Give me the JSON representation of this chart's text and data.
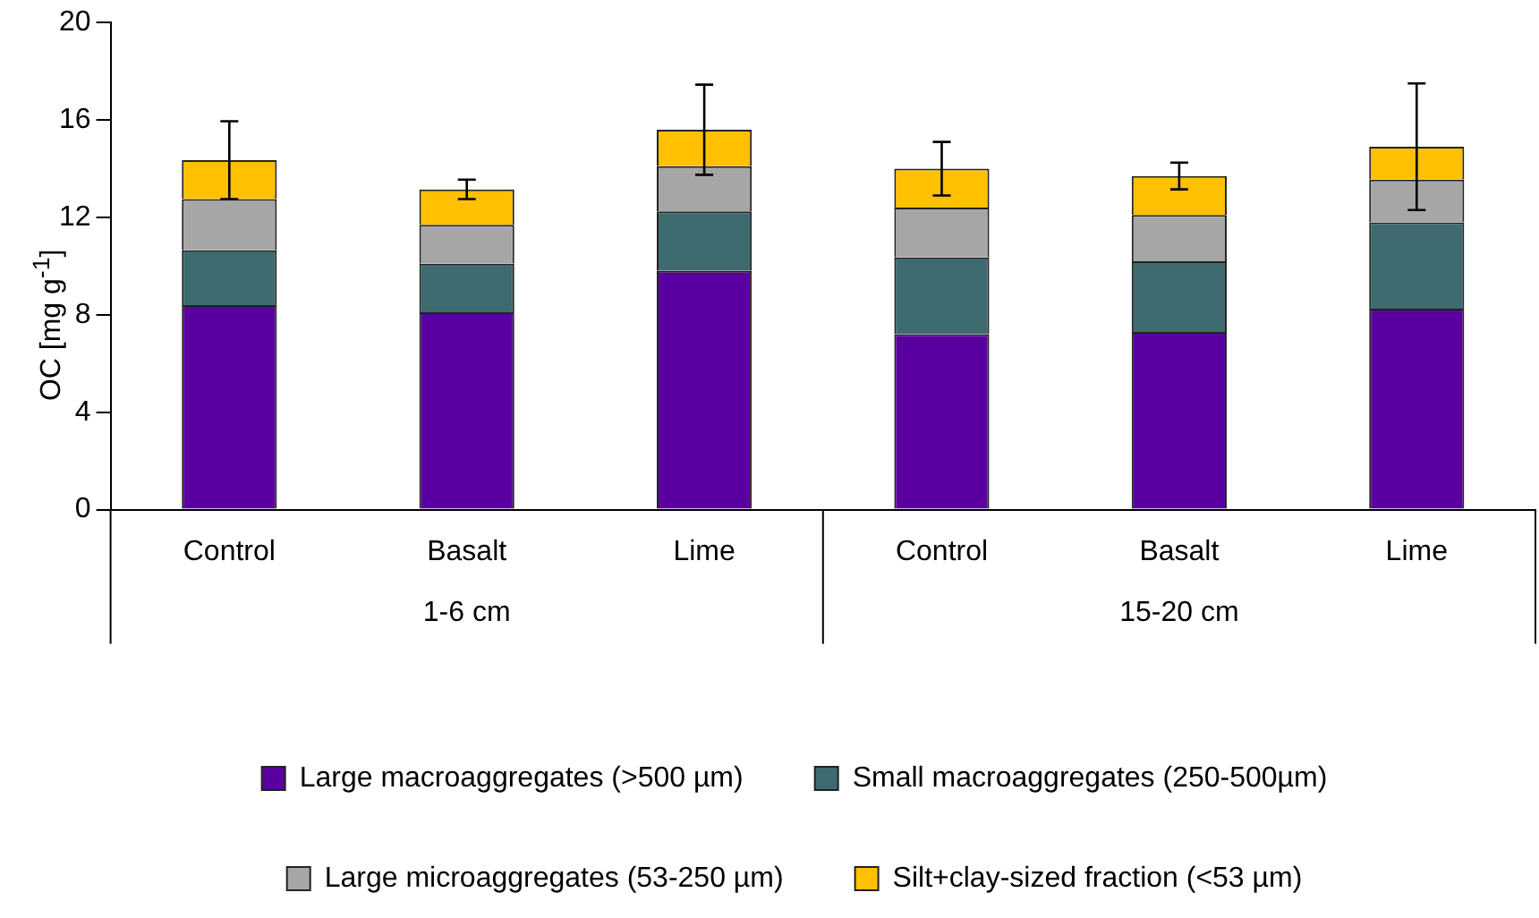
{
  "chart_data": {
    "type": "bar",
    "stacked": true,
    "ylabel": "OC [mg g$^{-1}$]",
    "categories": [
      "Control",
      "Basalt",
      "Lime",
      "Control",
      "Basalt",
      "Lime"
    ],
    "annotations": [
      "1-6 cm",
      "15-20 cm"
    ],
    "series": [
      {
        "name": "Large macroaggregates (>500 µm)",
        "color": "#5b00a0",
        "values": [
          8.4,
          8.1,
          9.8,
          7.2,
          7.3,
          8.25
        ]
      },
      {
        "name": "Small macroaggregates (250-500µm)",
        "color": "#3d6b70",
        "values": [
          2.25,
          2.0,
          2.45,
          3.15,
          2.9,
          3.55
        ]
      },
      {
        "name": "Large microaggregates (53-250 µm)",
        "color": "#a6a6a6",
        "values": [
          2.1,
          1.6,
          1.85,
          2.05,
          1.9,
          1.75
        ]
      },
      {
        "name": "Silt+clay-sized fraction (<53 µm)",
        "color": "#ffc000",
        "values": [
          1.6,
          1.45,
          1.5,
          1.6,
          1.6,
          1.35
        ],
        "errors": [
          1.6,
          0.4,
          1.85,
          1.1,
          0.55,
          2.6
        ]
      }
    ],
    "ylim": [
      0,
      20
    ],
    "yticks": [
      0,
      4,
      8,
      12,
      16,
      20
    ],
    "grid": false,
    "legend": "bottom"
  }
}
